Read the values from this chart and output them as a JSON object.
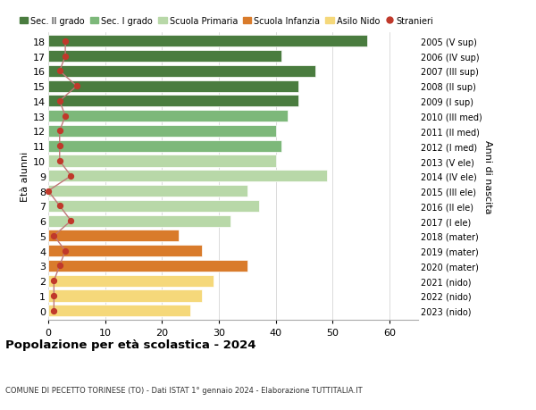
{
  "ages": [
    18,
    17,
    16,
    15,
    14,
    13,
    12,
    11,
    10,
    9,
    8,
    7,
    6,
    5,
    4,
    3,
    2,
    1,
    0
  ],
  "labels_right": [
    "2005 (V sup)",
    "2006 (IV sup)",
    "2007 (III sup)",
    "2008 (II sup)",
    "2009 (I sup)",
    "2010 (III med)",
    "2011 (II med)",
    "2012 (I med)",
    "2013 (V ele)",
    "2014 (IV ele)",
    "2015 (III ele)",
    "2016 (II ele)",
    "2017 (I ele)",
    "2018 (mater)",
    "2019 (mater)",
    "2020 (mater)",
    "2021 (nido)",
    "2022 (nido)",
    "2023 (nido)"
  ],
  "bar_values": [
    56,
    41,
    47,
    44,
    44,
    42,
    40,
    41,
    40,
    49,
    35,
    37,
    32,
    23,
    27,
    35,
    29,
    27,
    25
  ],
  "bar_colors": [
    "#4a7c3f",
    "#4a7c3f",
    "#4a7c3f",
    "#4a7c3f",
    "#4a7c3f",
    "#7db87a",
    "#7db87a",
    "#7db87a",
    "#b8d8a8",
    "#b8d8a8",
    "#b8d8a8",
    "#b8d8a8",
    "#b8d8a8",
    "#d97b2b",
    "#d97b2b",
    "#d97b2b",
    "#f5d87a",
    "#f5d87a",
    "#f5d87a"
  ],
  "stranieri_values": [
    3,
    3,
    2,
    5,
    2,
    3,
    2,
    2,
    2,
    4,
    0,
    2,
    4,
    1,
    3,
    2,
    1,
    1,
    1
  ],
  "legend_labels": [
    "Sec. II grado",
    "Sec. I grado",
    "Scuola Primaria",
    "Scuola Infanzia",
    "Asilo Nido",
    "Stranieri"
  ],
  "legend_colors": [
    "#4a7c3f",
    "#7db87a",
    "#b8d8a8",
    "#d97b2b",
    "#f5d87a",
    "#c0392b"
  ],
  "title": "Popolazione per età scolastica - 2024",
  "subtitle": "COMUNE DI PECETTO TORINESE (TO) - Dati ISTAT 1° gennaio 2024 - Elaborazione TUTTITALIA.IT",
  "ylabel_left": "Età alunni",
  "ylabel_right": "Anni di nascita",
  "xlim": [
    0,
    65
  ],
  "ylim": [
    -0.6,
    18.6
  ],
  "bg_color": "#ffffff",
  "grid_color": "#cccccc",
  "bar_height": 0.78,
  "stranieri_color": "#c0392b",
  "stranieri_line_color": "#c07878"
}
